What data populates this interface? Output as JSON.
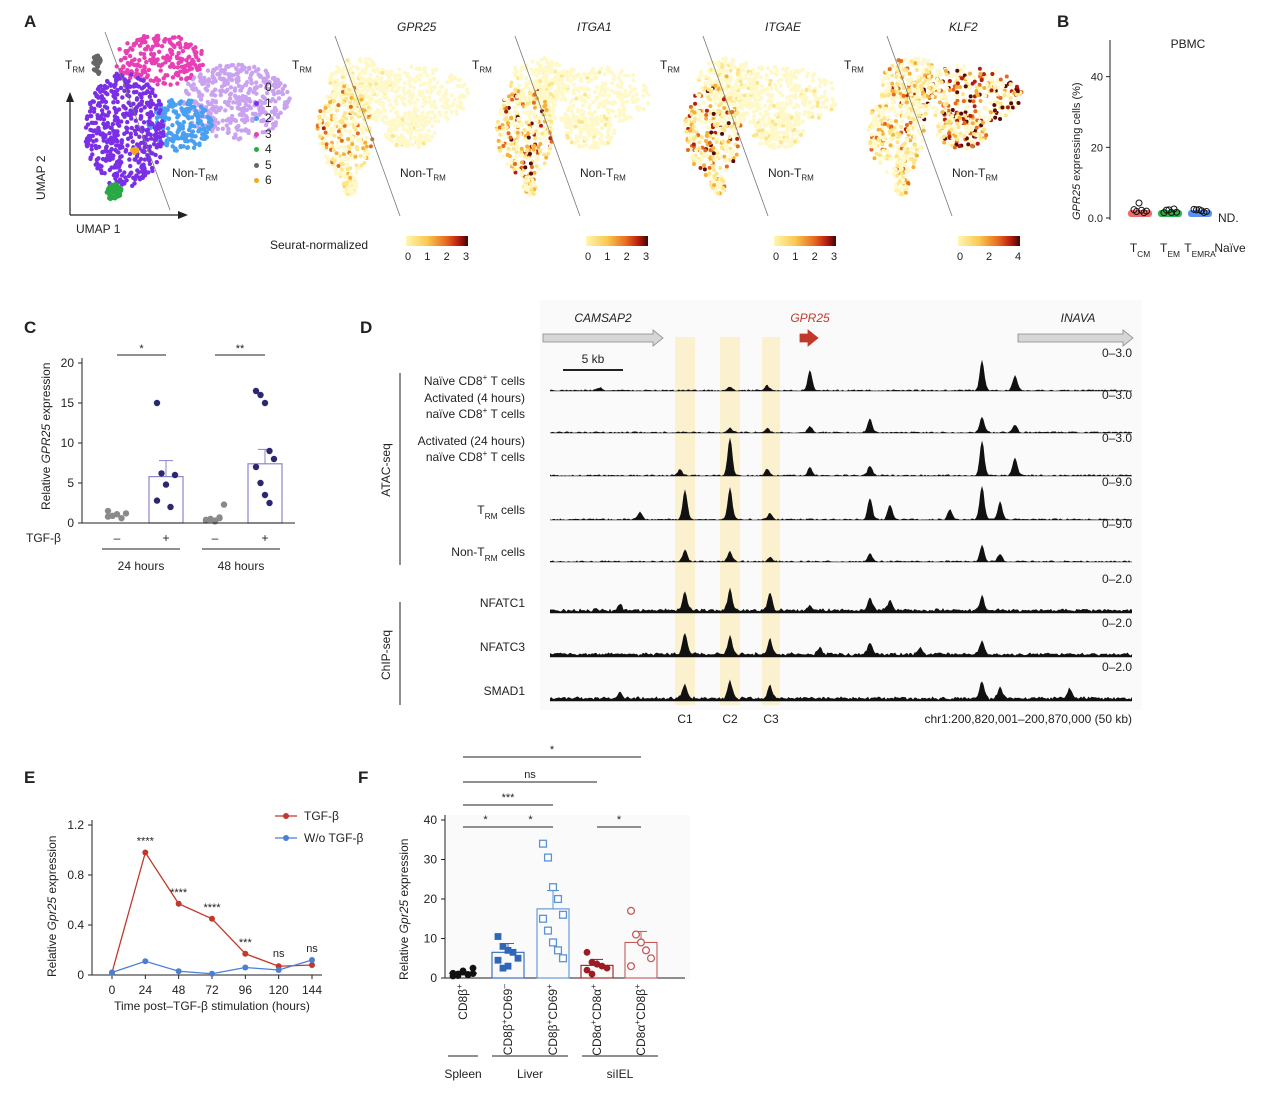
{
  "panels": {
    "A": "A",
    "B": "B",
    "C": "C",
    "D": "D",
    "E": "E",
    "F": "F"
  },
  "panelA": {
    "trm": "T",
    "trm_sub": "RM",
    "nontrm": "Non-T",
    "nontrm_sub": "RM",
    "umap1": "UMAP 1",
    "umap2": "UMAP 2",
    "clusters": [
      {
        "id": "0",
        "color": "#c9a3f0"
      },
      {
        "id": "1",
        "color": "#7a2fe6"
      },
      {
        "id": "2",
        "color": "#4aa0f0"
      },
      {
        "id": "3",
        "color": "#e83fb5"
      },
      {
        "id": "4",
        "color": "#2aa845"
      },
      {
        "id": "5",
        "color": "#666666"
      },
      {
        "id": "6",
        "color": "#f5a623"
      }
    ],
    "genes": [
      "GPR25",
      "ITGA1",
      "ITGAE",
      "KLF2"
    ],
    "scale_label": "Seurat-normalized",
    "scale_ticks": [
      [
        "0",
        "1",
        "2",
        "3"
      ],
      [
        "0",
        "1",
        "2",
        "3"
      ],
      [
        "0",
        "1",
        "2",
        "3"
      ],
      [
        "0",
        "2",
        "4"
      ]
    ]
  },
  "panelB": {
    "title": "PBMC",
    "ylabel": "GPR25 expressing cells (%)",
    "ylabel_gene": "GPR25",
    "ylabel_rest": " expressing cells (%)",
    "yticks": [
      "0.0",
      "20",
      "40"
    ],
    "groups": [
      {
        "main": "T",
        "sub": "CM",
        "color": "#ef6a6a"
      },
      {
        "main": "T",
        "sub": "EM",
        "color": "#2fb24a"
      },
      {
        "main": "T",
        "sub": "EMRA",
        "color": "#5b8ff0"
      },
      {
        "main": "Naïve",
        "sub": "",
        "color": ""
      }
    ],
    "nd": "ND."
  },
  "panelC": {
    "ylabel_pre": "Relative ",
    "ylabel_gene": "GPR25",
    "ylabel_post": " expression",
    "yticks": [
      "0",
      "5",
      "10",
      "15",
      "20"
    ],
    "tgf": "TGF-β",
    "minus": "–",
    "plus": "+",
    "times": [
      "24 hours",
      "48 hours"
    ],
    "sig": [
      "*",
      "**"
    ],
    "chart_data": {
      "type": "bar",
      "categories": [
        "24 hours –",
        "24 hours +",
        "48 hours –",
        "48 hours +"
      ],
      "values": [
        1.0,
        5.8,
        0.5,
        7.4
      ],
      "ylim": [
        0,
        20
      ],
      "points": [
        [
          1.5,
          0.9,
          1.1,
          0.6,
          1.2,
          0.8
        ],
        [
          15.0,
          6.2,
          4.8,
          2.0,
          6.0,
          2.8
        ],
        [
          0.3,
          0.5,
          0.2,
          0.6,
          2.3,
          0.4,
          0.5,
          0.3,
          0.7
        ],
        [
          16.5,
          16.0,
          15.0,
          9.0,
          8.0,
          7.0,
          5.0,
          3.5,
          2.5
        ]
      ]
    }
  },
  "panelD": {
    "genes_top": [
      "CAMSAP2",
      "GPR25",
      "INAVA"
    ],
    "scalebar": "5 kb",
    "atac_label": "ATAC-seq",
    "chip_label": "ChIP-seq",
    "tracks": [
      {
        "label1": "Naïve CD8",
        "label1_sup": "+",
        "label1_post": " T cells",
        "label2": "",
        "range": "0–3.0"
      },
      {
        "label1": "Activated (4 hours)",
        "label2": "naïve CD8",
        "label2_sup": "+",
        "label2_post": " T cells",
        "range": "0–3.0"
      },
      {
        "label1": "Activated (24 hours)",
        "label2": "naïve CD8",
        "label2_sup": "+",
        "label2_post": " T cells",
        "range": "0–3.0"
      },
      {
        "label1": "T",
        "label1_sub": "RM",
        "label1_post": " cells",
        "label2": "",
        "range": "0–9.0"
      },
      {
        "label1": "Non-T",
        "label1_sub": "RM",
        "label1_post": " cells",
        "label2": "",
        "range": "0–9.0"
      },
      {
        "label1": "NFATC1",
        "label2": "",
        "range": "0–2.0"
      },
      {
        "label1": "NFATC3",
        "label2": "",
        "range": "0–2.0"
      },
      {
        "label1": "SMAD1",
        "label2": "",
        "range": "0–2.0"
      }
    ],
    "regions": [
      "C1",
      "C2",
      "C3"
    ],
    "coords": "chr1:200,820,001–200,870,000 (50 kb)"
  },
  "panelE": {
    "ylabel_pre": "Relative ",
    "ylabel_gene": "Gpr25",
    "ylabel_post": " expression",
    "xlabel": "Time post–TGF-β stimulation (hours)",
    "legend": [
      "TGF-β",
      "W/o TGF-β"
    ],
    "colors": {
      "tgf": "#c0392b",
      "wo": "#4a7fd4"
    },
    "sig": [
      "****",
      "****",
      "****",
      "***",
      "ns",
      "ns"
    ],
    "chart_data": {
      "type": "line",
      "x": [
        0,
        24,
        48,
        72,
        96,
        120,
        144
      ],
      "series": [
        {
          "name": "TGF-β",
          "values": [
            0.02,
            0.98,
            0.57,
            0.45,
            0.17,
            0.07,
            0.08
          ]
        },
        {
          "name": "W/o TGF-β",
          "values": [
            0.02,
            0.11,
            0.03,
            0.01,
            0.06,
            0.04,
            0.12
          ]
        }
      ],
      "ylim": [
        0,
        1.2
      ],
      "yticks": [
        "0",
        "0.4",
        "0.8",
        "1.2"
      ]
    }
  },
  "panelF": {
    "ylabel_pre": "Relative ",
    "ylabel_gene": "Gpr25",
    "ylabel_post": " expression",
    "yticks": [
      "0",
      "10",
      "20",
      "30",
      "40"
    ],
    "cats": [
      {
        "a": "CD8β",
        "as": "+",
        "b": "",
        "bs": ""
      },
      {
        "a": "CD8β",
        "as": "+",
        "b": "CD69",
        "bs": "–"
      },
      {
        "a": "CD8β",
        "as": "+",
        "b": "CD69",
        "bs": "+"
      },
      {
        "a": "CD8α",
        "as": "+",
        "b": "CD8α",
        "bs": "+"
      },
      {
        "a": "CD8α",
        "as": "+",
        "b": "CD8β",
        "bs": "+"
      }
    ],
    "tissues": [
      "Spleen",
      "Liver",
      "siIEL"
    ],
    "sig": [
      "*",
      "ns",
      "***",
      "*",
      "*",
      "*"
    ],
    "chart_data": {
      "type": "bar",
      "categories": [
        "Spleen CD8β+",
        "Liver CD8β+CD69–",
        "Liver CD8β+CD69+",
        "siIEL CD8α+CD8α+",
        "siIEL CD8α+CD8β+"
      ],
      "values": [
        1.2,
        6.5,
        17.5,
        3.2,
        9.0
      ],
      "ylim": [
        0,
        40
      ],
      "colors": [
        "#111111",
        "#2e67b8",
        "#5a93d6",
        "#9b1c25",
        "#c45a5a"
      ],
      "points": [
        [
          0.5,
          1.0,
          1.5,
          0.8,
          2.5,
          1.2,
          0.6,
          1.8,
          0.9,
          1.1
        ],
        [
          10.5,
          8.0,
          7.0,
          6.5,
          5.0,
          4.5,
          2.5,
          3.0
        ],
        [
          34.0,
          30.5,
          23.0,
          20.0,
          16.0,
          15.0,
          12.0,
          9.0,
          7.0,
          5.0
        ],
        [
          6.5,
          4.0,
          3.5,
          3.0,
          2.5,
          2.0,
          1.0
        ],
        [
          17.0,
          11.0,
          9.0,
          7.0,
          5.0,
          3.0
        ]
      ]
    }
  }
}
